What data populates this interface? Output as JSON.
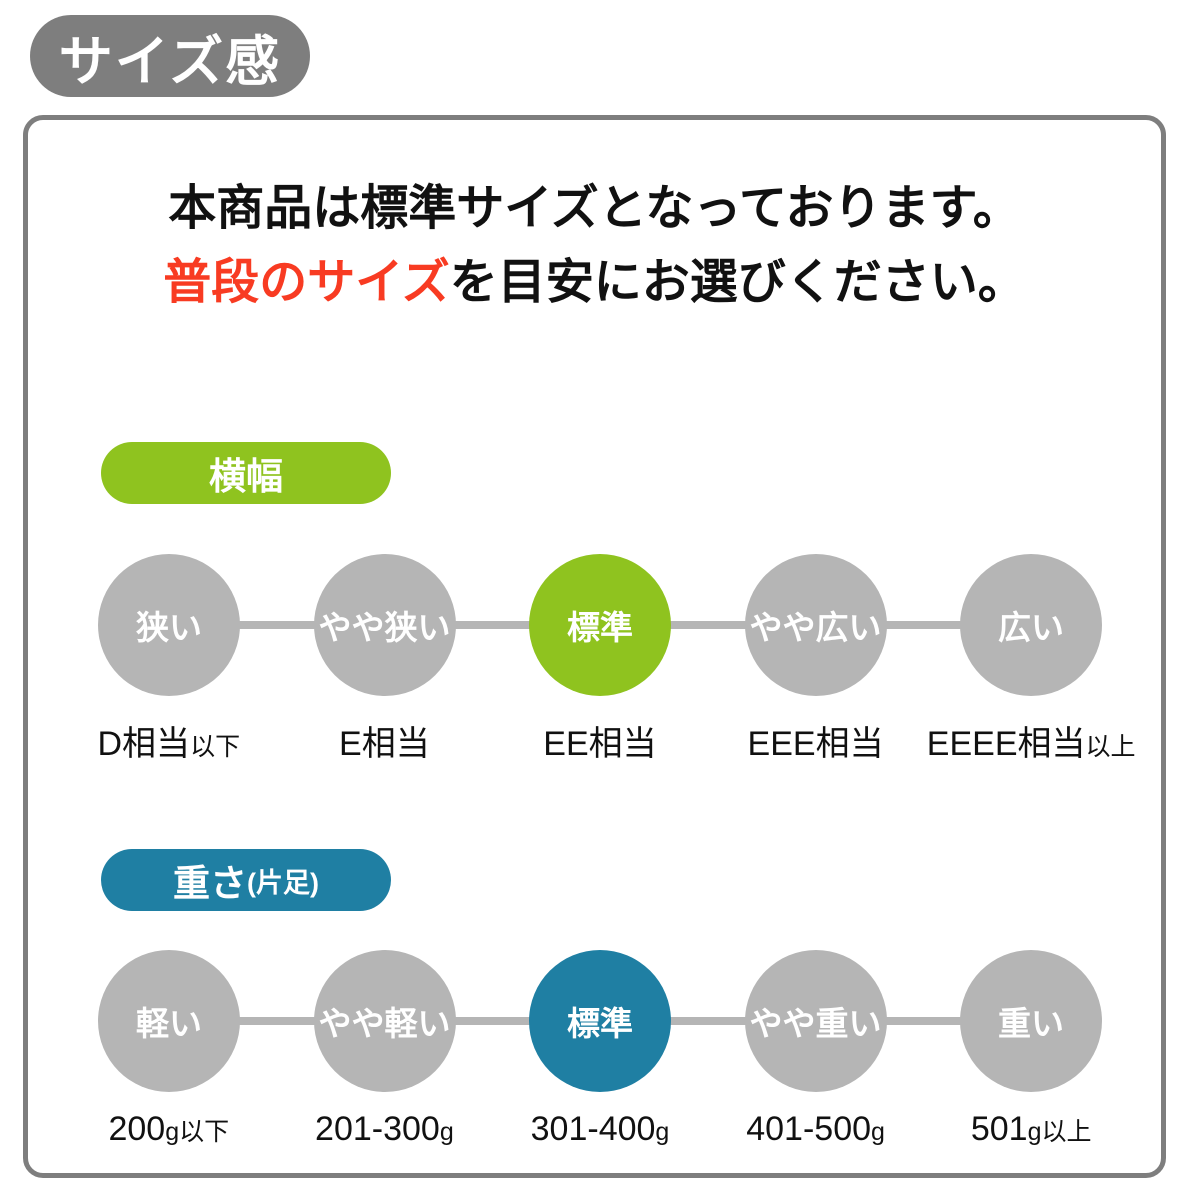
{
  "page_title": "サイズ感",
  "intro": {
    "line1": "本商品は標準サイズとなっております。",
    "line2_highlight": "普段のサイズ",
    "line2_rest": "を目安にお選びください。"
  },
  "colors": {
    "header_gray": "#7e7e7e",
    "panel_border": "#7e7e7e",
    "circle_gray": "#b5b5b5",
    "red": "#f83b22",
    "text": "#111111"
  },
  "sections": [
    {
      "id": "width",
      "badge_label": "横幅",
      "badge_suffix": "",
      "accent": "#8fc31f",
      "steps": [
        {
          "circle": "狭い",
          "active": false,
          "label_main": "D相当",
          "label_suffix": "以下"
        },
        {
          "circle": "やや狭い",
          "active": false,
          "label_main": "E相当",
          "label_suffix": ""
        },
        {
          "circle": "標準",
          "active": true,
          "label_main": "EE相当",
          "label_suffix": ""
        },
        {
          "circle": "やや広い",
          "active": false,
          "label_main": "EEE相当",
          "label_suffix": ""
        },
        {
          "circle": "広い",
          "active": false,
          "label_main": "EEEE相当",
          "label_suffix": "以上"
        }
      ]
    },
    {
      "id": "weight",
      "badge_label": "重さ",
      "badge_suffix": "(片足)",
      "accent": "#1f7fa3",
      "steps": [
        {
          "circle": "軽い",
          "active": false,
          "label_main": "200",
          "label_suffix": "g以下"
        },
        {
          "circle": "やや軽い",
          "active": false,
          "label_main": "201-300",
          "label_suffix": "g"
        },
        {
          "circle": "標準",
          "active": true,
          "label_main": "301-400",
          "label_suffix": "g"
        },
        {
          "circle": "やや重い",
          "active": false,
          "label_main": "401-500",
          "label_suffix": "g"
        },
        {
          "circle": "重い",
          "active": false,
          "label_main": "501",
          "label_suffix": "g以上"
        }
      ]
    }
  ]
}
